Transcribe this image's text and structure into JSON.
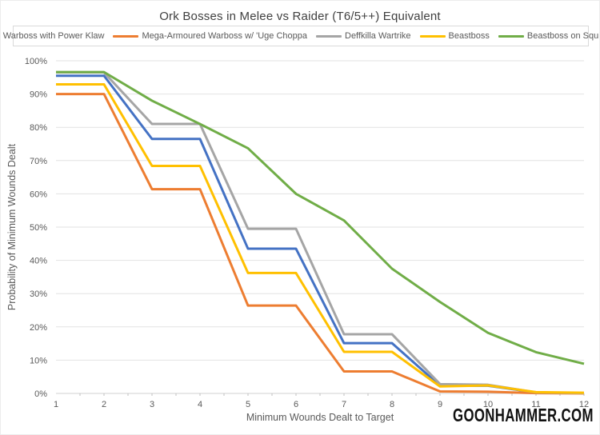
{
  "watermark": "GOONHAMMER.COM",
  "chart_data": {
    "type": "line",
    "title": "Ork Bosses in Melee vs Raider (T6/5++) Equivalent",
    "xlabel": "Minimum Wounds Dealt to Target",
    "ylabel": "Probability of Minimum Wounds Dealt",
    "x": [
      1,
      2,
      3,
      4,
      5,
      6,
      7,
      8,
      9,
      10,
      11,
      12
    ],
    "ylim": [
      0,
      100
    ],
    "ytick_step": 10,
    "ytick_suffix": "%",
    "grid": true,
    "legend_position": "top",
    "series": [
      {
        "name": "Warboss with Power Klaw",
        "color": "#4472C4",
        "values": [
          95.5,
          95.5,
          76.5,
          76.5,
          43.5,
          43.5,
          15.1,
          15.1,
          2.3,
          2.3,
          0.3,
          0.1
        ]
      },
      {
        "name": "Mega-Armoured Warboss w/ 'Uge Choppa",
        "color": "#ED7D31",
        "values": [
          90.0,
          90.0,
          61.4,
          61.4,
          26.4,
          26.4,
          6.6,
          6.6,
          0.6,
          0.5,
          0.1,
          0.0
        ]
      },
      {
        "name": "Deffkilla Wartrike",
        "color": "#A5A5A5",
        "values": [
          96.5,
          96.5,
          81.0,
          81.0,
          49.5,
          49.5,
          17.8,
          17.8,
          2.8,
          2.6,
          0.3,
          0.1
        ]
      },
      {
        "name": "Beastboss",
        "color": "#FFC000",
        "values": [
          92.9,
          92.9,
          68.4,
          68.4,
          36.2,
          36.2,
          12.5,
          12.5,
          2.1,
          2.4,
          0.4,
          0.2
        ]
      },
      {
        "name": "Beastboss on Squigosaur",
        "color": "#70AD47",
        "values": [
          96.6,
          96.6,
          88.0,
          81.0,
          73.7,
          60.0,
          52.0,
          37.5,
          27.5,
          18.2,
          12.4,
          8.9
        ]
      }
    ]
  },
  "colors": {
    "title_text": "#3F3F3F",
    "axis_text": "#595959",
    "gridline": "#E2E2E2",
    "axis_line": "#D0D0D0",
    "tick_mark": "#BFBFBF",
    "legend_border": "#D9D9D9",
    "watermark_text": "#111111",
    "background": "#FFFFFF"
  }
}
